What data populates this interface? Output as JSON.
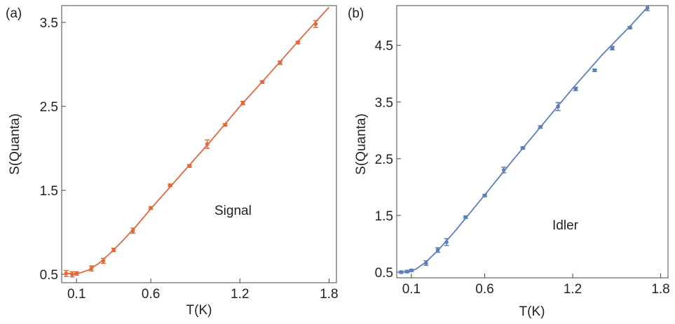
{
  "chart_data": [
    {
      "type": "scatter",
      "panel_label": "(a)",
      "xlabel": "T(K)",
      "ylabel": "S(Quanta)",
      "annotation": "Signal",
      "color": "#e0683a",
      "xlim": [
        0,
        1.85
      ],
      "ylim": [
        0.4,
        3.7
      ],
      "xticks": [
        0.1,
        0.6,
        1.2,
        1.8
      ],
      "xtick_labels": [
        "0.1",
        "0.6",
        "1.2",
        "1.8"
      ],
      "yticks": [
        0.5,
        1.5,
        2.5,
        3.5
      ],
      "ytick_labels": [
        "0.5",
        "1.5",
        "2.5",
        "3.5"
      ],
      "series": [
        {
          "points": [
            {
              "x": 0.03,
              "y": 0.51,
              "err": 0.035
            },
            {
              "x": 0.07,
              "y": 0.5,
              "err": 0.03
            },
            {
              "x": 0.1,
              "y": 0.51,
              "err": 0.02
            },
            {
              "x": 0.2,
              "y": 0.57,
              "err": 0.03
            },
            {
              "x": 0.28,
              "y": 0.66,
              "err": 0.03
            },
            {
              "x": 0.35,
              "y": 0.79,
              "err": 0.02
            },
            {
              "x": 0.48,
              "y": 1.02,
              "err": 0.03
            },
            {
              "x": 0.6,
              "y": 1.29,
              "err": 0.015
            },
            {
              "x": 0.73,
              "y": 1.56,
              "err": 0.015
            },
            {
              "x": 0.86,
              "y": 1.79,
              "err": 0.015
            },
            {
              "x": 0.98,
              "y": 2.05,
              "err": 0.05
            },
            {
              "x": 1.1,
              "y": 2.28,
              "err": 0.015
            },
            {
              "x": 1.22,
              "y": 2.54,
              "err": 0.02
            },
            {
              "x": 1.35,
              "y": 2.79,
              "err": 0.015
            },
            {
              "x": 1.47,
              "y": 3.02,
              "err": 0.02
            },
            {
              "x": 1.59,
              "y": 3.26,
              "err": 0.015
            },
            {
              "x": 1.71,
              "y": 3.48,
              "err": 0.04
            }
          ],
          "fit": [
            [
              0.03,
              0.51
            ],
            [
              0.08,
              0.505
            ],
            [
              0.12,
              0.515
            ],
            [
              0.18,
              0.55
            ],
            [
              0.25,
              0.63
            ],
            [
              0.32,
              0.74
            ],
            [
              0.4,
              0.88
            ],
            [
              0.5,
              1.07
            ],
            [
              0.6,
              1.28
            ],
            [
              0.8,
              1.68
            ],
            [
              1.0,
              2.08
            ],
            [
              1.2,
              2.5
            ],
            [
              1.4,
              2.89
            ],
            [
              1.6,
              3.29
            ],
            [
              1.8,
              3.68
            ]
          ]
        }
      ]
    },
    {
      "type": "scatter",
      "panel_label": "(b)",
      "xlabel": "T(K)",
      "ylabel": "S(Quanta)",
      "annotation": "Idler",
      "color": "#5b7fb9",
      "xlim": [
        0,
        1.85
      ],
      "ylim": [
        0.4,
        5.2
      ],
      "xticks": [
        0.1,
        0.6,
        1.2,
        1.8
      ],
      "xtick_labels": [
        "0.1",
        "0.6",
        "1.2",
        "1.8"
      ],
      "yticks": [
        0.5,
        1.5,
        2.5,
        3.5,
        4.5
      ],
      "ytick_labels": [
        "0.5",
        "1.5",
        "2.5",
        "3.5",
        "4.5"
      ],
      "series": [
        {
          "points": [
            {
              "x": 0.03,
              "y": 0.5,
              "err": 0.02
            },
            {
              "x": 0.07,
              "y": 0.51,
              "err": 0.02
            },
            {
              "x": 0.1,
              "y": 0.53,
              "err": 0.02
            },
            {
              "x": 0.2,
              "y": 0.66,
              "err": 0.04
            },
            {
              "x": 0.28,
              "y": 0.89,
              "err": 0.04
            },
            {
              "x": 0.34,
              "y": 1.03,
              "err": 0.06
            },
            {
              "x": 0.47,
              "y": 1.47,
              "err": 0.02
            },
            {
              "x": 0.6,
              "y": 1.85,
              "err": 0.02
            },
            {
              "x": 0.73,
              "y": 2.3,
              "err": 0.05
            },
            {
              "x": 0.86,
              "y": 2.69,
              "err": 0.02
            },
            {
              "x": 0.98,
              "y": 3.06,
              "err": 0.02
            },
            {
              "x": 1.1,
              "y": 3.42,
              "err": 0.07
            },
            {
              "x": 1.22,
              "y": 3.73,
              "err": 0.03
            },
            {
              "x": 1.35,
              "y": 4.06,
              "err": 0.02
            },
            {
              "x": 1.47,
              "y": 4.45,
              "err": 0.03
            },
            {
              "x": 1.59,
              "y": 4.81,
              "err": 0.02
            },
            {
              "x": 1.71,
              "y": 5.16,
              "err": 0.05
            }
          ],
          "fit": [
            [
              0.03,
              0.5
            ],
            [
              0.08,
              0.51
            ],
            [
              0.13,
              0.55
            ],
            [
              0.2,
              0.68
            ],
            [
              0.28,
              0.88
            ],
            [
              0.4,
              1.23
            ],
            [
              0.6,
              1.86
            ],
            [
              0.8,
              2.5
            ],
            [
              1.0,
              3.12
            ],
            [
              1.2,
              3.74
            ],
            [
              1.4,
              4.33
            ],
            [
              1.6,
              4.86
            ],
            [
              1.72,
              5.2
            ]
          ]
        }
      ]
    }
  ]
}
